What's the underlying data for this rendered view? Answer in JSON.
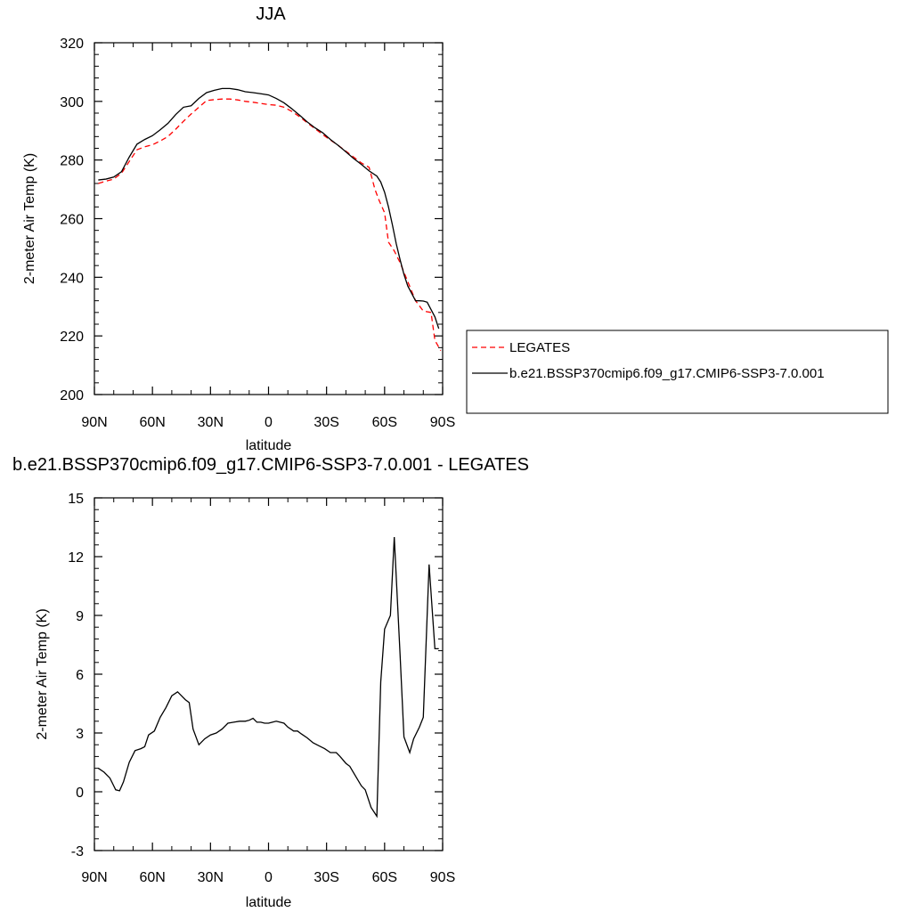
{
  "chart_data": [
    {
      "type": "line",
      "title": "JJA",
      "xlabel": "latitude",
      "ylabel": "2-meter Air Temp (K)",
      "ylim": [
        200,
        320
      ],
      "xlim": [
        90,
        -90
      ],
      "x_ticks": [
        90,
        60,
        30,
        0,
        -30,
        -60,
        -90
      ],
      "x_tick_labels": [
        "90N",
        "60N",
        "30N",
        "0",
        "30S",
        "60S",
        "90S"
      ],
      "y_ticks": [
        200,
        220,
        240,
        260,
        280,
        300,
        320
      ],
      "y_tick_labels": [
        "200",
        "220",
        "240",
        "260",
        "280",
        "300",
        "320"
      ],
      "grid": false,
      "legend_position": "right",
      "series": [
        {
          "name": "LEGATES",
          "color": "#ff0000",
          "dash": "dashed",
          "x": [
            88,
            84,
            80,
            76,
            72,
            68,
            64,
            60,
            56,
            52,
            48,
            44,
            40,
            36,
            32,
            28,
            24,
            20,
            16,
            12,
            8,
            4,
            0,
            -4,
            -8,
            -12,
            -16,
            -20,
            -24,
            -28,
            -32,
            -36,
            -40,
            -44,
            -48,
            -52,
            -55,
            -57,
            -60,
            -62,
            -65,
            -68,
            -72,
            -76,
            -80,
            -84,
            -86,
            -89
          ],
          "values": [
            272,
            272.8,
            273.5,
            275.5,
            279.5,
            283.5,
            284.5,
            285.2,
            286.5,
            288,
            290.5,
            293.2,
            295.7,
            298,
            300.3,
            300.6,
            300.8,
            300.8,
            300.5,
            300,
            299.7,
            299.3,
            298.9,
            298.7,
            298,
            296.6,
            294.8,
            292.7,
            290.7,
            288.7,
            286.8,
            285,
            283,
            281,
            279,
            277.5,
            270,
            266.5,
            262,
            252,
            249,
            245,
            238.5,
            232,
            228.5,
            228,
            218.5,
            215
          ]
        },
        {
          "name": "b.e21.BSSP370cmip6.f09_g17.CMIP6-SSP3-7.0.001",
          "color": "#000000",
          "dash": "solid",
          "x": [
            88,
            84,
            80,
            76,
            72,
            68,
            64,
            60,
            56,
            52,
            48,
            44,
            40,
            36,
            32,
            28,
            24,
            20,
            16,
            12,
            8,
            4,
            0,
            -4,
            -8,
            -12,
            -16,
            -20,
            -24,
            -28,
            -32,
            -36,
            -40,
            -44,
            -48,
            -52,
            -56,
            -58,
            -60,
            -62,
            -64,
            -66,
            -68,
            -70,
            -72,
            -74,
            -76,
            -78,
            -80,
            -82,
            -84,
            -86,
            -88
          ],
          "values": [
            273.2,
            273.5,
            274.2,
            276,
            281,
            285.4,
            287,
            288.3,
            290.3,
            292.5,
            295.5,
            298,
            298.5,
            301,
            303,
            303.8,
            304.4,
            304.4,
            304,
            303.3,
            303,
            302.6,
            302.2,
            301,
            299.5,
            297.5,
            295.3,
            293,
            291,
            289.3,
            287,
            285,
            282.8,
            280.5,
            278.5,
            276.3,
            274.5,
            272.5,
            269,
            264,
            258,
            251.5,
            246,
            241,
            237,
            234.5,
            232,
            232,
            231.9,
            231.5,
            229,
            226.5,
            222.5
          ]
        }
      ]
    },
    {
      "type": "line",
      "title": "b.e21.BSSP370cmip6.f09_g17.CMIP6-SSP3-7.0.001 - LEGATES",
      "xlabel": "latitude",
      "ylabel": "2-meter Air Temp (K)",
      "ylim": [
        -3,
        15
      ],
      "xlim": [
        90,
        -90
      ],
      "x_ticks": [
        90,
        60,
        30,
        0,
        -30,
        -60,
        -90
      ],
      "x_tick_labels": [
        "90N",
        "60N",
        "30N",
        "0",
        "30S",
        "60S",
        "90S"
      ],
      "y_ticks": [
        -3,
        0,
        3,
        6,
        9,
        12,
        15
      ],
      "y_tick_labels": [
        "-3",
        "0",
        "3",
        "6",
        "9",
        "12",
        "15"
      ],
      "grid": false,
      "series": [
        {
          "color": "#000000",
          "dash": "solid",
          "x": [
            88,
            85,
            82,
            79,
            77,
            75,
            72,
            69,
            66,
            64,
            62,
            59,
            56,
            53,
            50,
            47,
            45,
            43,
            41,
            39,
            36,
            33,
            30,
            27,
            24,
            21,
            18,
            15,
            12,
            10,
            8,
            6,
            4,
            2,
            0,
            -2,
            -4,
            -6,
            -8,
            -10,
            -13,
            -15,
            -17,
            -20,
            -23,
            -26,
            -29,
            -32,
            -35,
            -37,
            -40,
            -42,
            -45,
            -48,
            -50,
            -53,
            -56,
            -58,
            -60,
            -63,
            -65,
            -68,
            -70,
            -73,
            -75,
            -78,
            -80,
            -83,
            -86,
            -88
          ],
          "values": [
            1.2,
            1.0,
            0.7,
            0.1,
            0.05,
            0.5,
            1.5,
            2.1,
            2.2,
            2.3,
            2.9,
            3.1,
            3.8,
            4.3,
            4.9,
            5.1,
            4.9,
            4.7,
            4.55,
            3.2,
            2.4,
            2.7,
            2.9,
            3.0,
            3.2,
            3.5,
            3.55,
            3.6,
            3.6,
            3.65,
            3.75,
            3.55,
            3.55,
            3.5,
            3.5,
            3.55,
            3.6,
            3.55,
            3.5,
            3.3,
            3.1,
            3.1,
            2.95,
            2.75,
            2.5,
            2.35,
            2.2,
            2.0,
            2.0,
            1.8,
            1.45,
            1.3,
            0.8,
            0.3,
            0.1,
            -0.8,
            -1.25,
            5.6,
            8.3,
            9.0,
            13.0,
            7.0,
            2.8,
            2.0,
            2.7,
            3.3,
            3.8,
            11.6,
            7.3,
            7.3
          ]
        }
      ]
    }
  ]
}
